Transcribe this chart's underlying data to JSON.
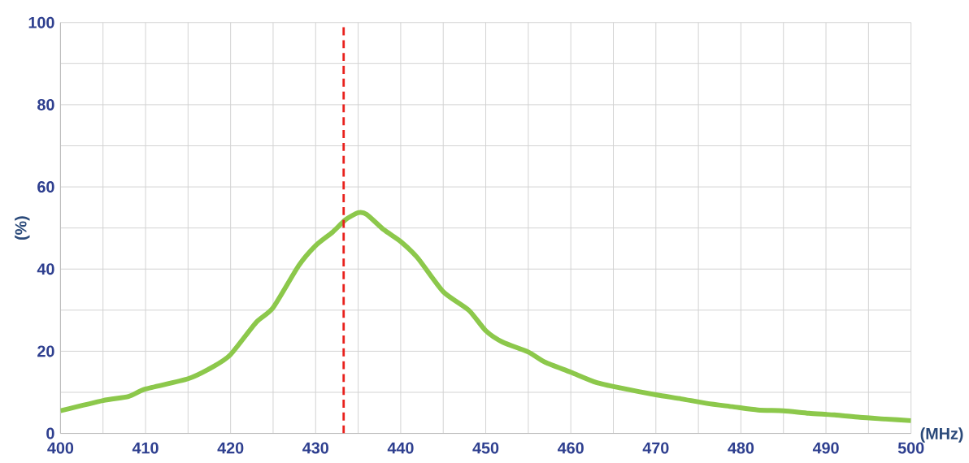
{
  "chart_data": {
    "type": "line",
    "xlabel": "(MHz)",
    "ylabel": "(%)",
    "x": [
      400,
      405,
      408,
      410,
      415,
      418,
      420,
      423,
      425,
      428,
      430,
      432,
      433.5,
      435,
      436,
      438,
      440,
      442,
      445,
      448,
      450,
      452,
      455,
      457,
      460,
      463,
      466,
      470,
      473,
      476,
      479,
      482,
      485,
      488,
      491,
      494,
      497,
      500
    ],
    "series": [
      {
        "color": "#8cc84b",
        "values": [
          5.5,
          8,
          9,
          10.8,
          13.3,
          16.3,
          19.2,
          27,
          30.6,
          40.8,
          45.7,
          49,
          52,
          53.7,
          53.3,
          49.6,
          46.7,
          42.7,
          34.5,
          30,
          25,
          22.2,
          19.8,
          17.3,
          14.9,
          12.4,
          11,
          9.4,
          8.4,
          7.3,
          6.5,
          5.7,
          5.5,
          4.9,
          4.5,
          3.9,
          3.5,
          3.1
        ]
      }
    ],
    "xlim": [
      400,
      500
    ],
    "ylim": [
      0,
      100
    ],
    "xticks": [
      400,
      {
        "value": 405,
        "label": null
      },
      410,
      {
        "value": 415,
        "label": null
      },
      420,
      {
        "value": 425,
        "label": null
      },
      430,
      {
        "value": 435,
        "label": null
      },
      440,
      {
        "value": 445,
        "label": null
      },
      450,
      {
        "value": 455,
        "label": null
      },
      460,
      {
        "value": 465,
        "label": null
      },
      470,
      {
        "value": 475,
        "label": null
      },
      480,
      {
        "value": 485,
        "label": null
      },
      490,
      {
        "value": 495,
        "label": null
      },
      500
    ],
    "yticks": [
      0,
      {
        "value": 10,
        "label": null
      },
      20,
      {
        "value": 30,
        "label": null
      },
      40,
      {
        "value": 50,
        "label": null
      },
      60,
      {
        "value": 70,
        "label": null
      },
      80,
      {
        "value": 90,
        "label": null
      },
      100
    ],
    "grid": true,
    "ref_lines": [
      {
        "axis": "x",
        "value": 433.3,
        "color": "#e8211d",
        "line_style": "dashed"
      }
    ]
  }
}
